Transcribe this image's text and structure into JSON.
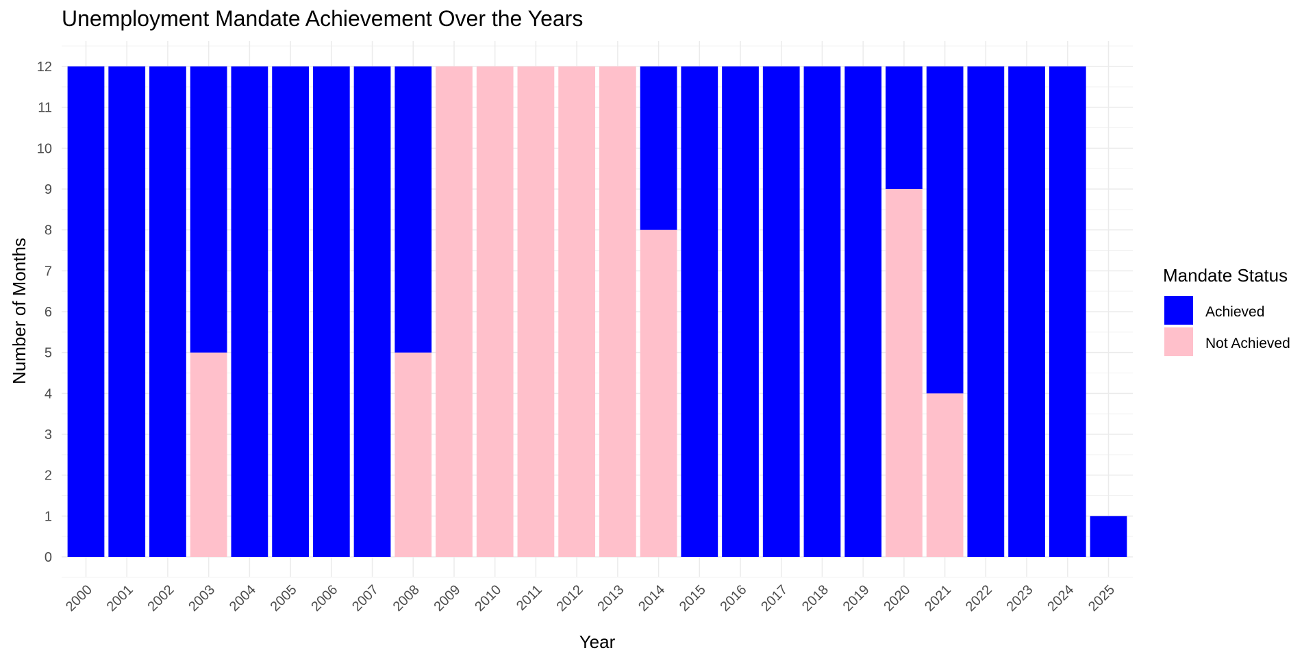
{
  "chart_data": {
    "type": "bar",
    "stacked": true,
    "title": "Unemployment Mandate Achievement Over the Years",
    "xlabel": "Year",
    "ylabel": "Number of Months",
    "categories": [
      "2000",
      "2001",
      "2002",
      "2003",
      "2004",
      "2005",
      "2006",
      "2007",
      "2008",
      "2009",
      "2010",
      "2011",
      "2012",
      "2013",
      "2014",
      "2015",
      "2016",
      "2017",
      "2018",
      "2019",
      "2020",
      "2021",
      "2022",
      "2023",
      "2024",
      "2025"
    ],
    "series": [
      {
        "name": "Not Achieved",
        "color": "#FFC0CB",
        "values": [
          0,
          0,
          0,
          5,
          0,
          0,
          0,
          0,
          5,
          12,
          12,
          12,
          12,
          12,
          8,
          0,
          0,
          0,
          0,
          0,
          9,
          4,
          0,
          0,
          0,
          0
        ]
      },
      {
        "name": "Achieved",
        "color": "#0000FF",
        "values": [
          12,
          12,
          12,
          7,
          12,
          12,
          12,
          12,
          7,
          0,
          0,
          0,
          0,
          0,
          4,
          12,
          12,
          12,
          12,
          12,
          3,
          8,
          12,
          12,
          12,
          1
        ]
      }
    ],
    "ylim": [
      0,
      12
    ],
    "yticks": [
      0,
      1,
      2,
      3,
      4,
      5,
      6,
      7,
      8,
      9,
      10,
      11,
      12
    ],
    "grid": true,
    "legend": {
      "title": "Mandate Status",
      "position": "right",
      "entries": [
        {
          "label": "Achieved",
          "color": "#0000FF"
        },
        {
          "label": "Not Achieved",
          "color": "#FFC0CB"
        }
      ]
    }
  }
}
